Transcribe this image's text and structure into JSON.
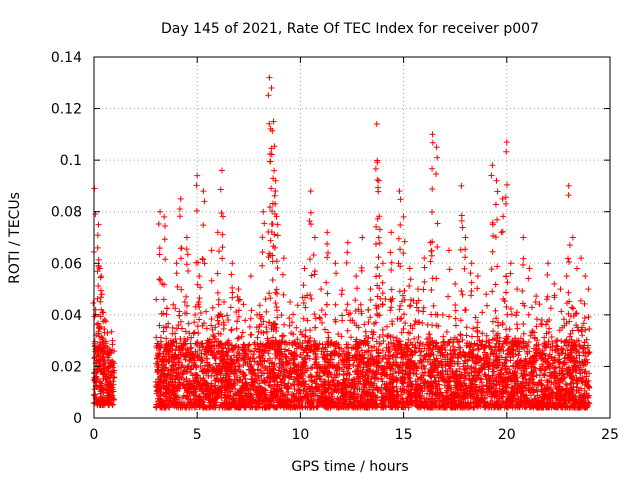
{
  "chart_data": {
    "type": "scatter",
    "title": "Day 145 of 2021, Rate Of TEC Index for receiver p007",
    "xlabel": "GPS time / hours",
    "ylabel": "ROTI / TECUs",
    "xlim": [
      0,
      25
    ],
    "ylim": [
      0,
      0.14
    ],
    "x_ticks": [
      "0",
      "5",
      "10",
      "15",
      "20",
      "25"
    ],
    "y_ticks": [
      "0",
      "0.02",
      "0.04",
      "0.06",
      "0.08",
      "0.1",
      "0.12",
      "0.14"
    ],
    "grid": true,
    "marker": "plus",
    "colors": {
      "points": "#ff0000",
      "grid": "#a0a0a0"
    },
    "series": [
      {
        "x": [
          0.02,
          0.05,
          0.08,
          0.12,
          0.15,
          0.18,
          0.22,
          0.25,
          0.28,
          0.32,
          0.35,
          0.38,
          0.42,
          0.45,
          0.48,
          0.52,
          0.55,
          0.6,
          0.65,
          0.7,
          0.75,
          0.8,
          0.85,
          0.9,
          0.95,
          3.0,
          3.1,
          3.2,
          3.3,
          3.4,
          3.5,
          3.6,
          3.7,
          3.8,
          3.9,
          4.0,
          4.2,
          4.4,
          4.5,
          4.7,
          4.9,
          5.0,
          5.1,
          5.3,
          5.5,
          5.7,
          5.9,
          6.0,
          6.2,
          6.3,
          6.5,
          6.7,
          7.0,
          7.3,
          7.6,
          7.9,
          8.2,
          8.5,
          8.6,
          8.7,
          8.8,
          8.9,
          9.2,
          9.5,
          9.8,
          10.2,
          10.5,
          10.7,
          11.0,
          11.3,
          11.7,
          12.0,
          12.3,
          12.7,
          13.0,
          13.4,
          13.7,
          13.8,
          14.0,
          14.4,
          14.8,
          15.0,
          15.3,
          15.7,
          16.0,
          16.3,
          16.4,
          16.6,
          16.9,
          17.2,
          17.5,
          17.8,
          18.0,
          18.3,
          18.6,
          19.0,
          19.3,
          19.5,
          19.8,
          20.0,
          20.2,
          20.5,
          20.8,
          21.1,
          21.4,
          21.7,
          22.0,
          22.3,
          22.6,
          22.9,
          23.0,
          23.2,
          23.4,
          23.6,
          23.8,
          23.95
        ],
        "y": [
          0.089,
          0.028,
          0.042,
          0.018,
          0.012,
          0.066,
          0.075,
          0.035,
          0.058,
          0.022,
          0.055,
          0.048,
          0.031,
          0.041,
          0.02,
          0.038,
          0.015,
          0.025,
          0.033,
          0.017,
          0.012,
          0.009,
          0.008,
          0.011,
          0.007,
          0.014,
          0.018,
          0.08,
          0.052,
          0.078,
          0.035,
          0.022,
          0.015,
          0.028,
          0.012,
          0.06,
          0.085,
          0.045,
          0.07,
          0.025,
          0.04,
          0.094,
          0.055,
          0.088,
          0.03,
          0.065,
          0.018,
          0.072,
          0.096,
          0.045,
          0.038,
          0.06,
          0.05,
          0.025,
          0.055,
          0.04,
          0.08,
          0.132,
          0.128,
          0.115,
          0.092,
          0.075,
          0.062,
          0.045,
          0.035,
          0.058,
          0.088,
          0.07,
          0.05,
          0.072,
          0.06,
          0.048,
          0.068,
          0.055,
          0.07,
          0.05,
          0.114,
          0.092,
          0.06,
          0.072,
          0.088,
          0.078,
          0.058,
          0.05,
          0.062,
          0.068,
          0.11,
          0.105,
          0.04,
          0.065,
          0.052,
          0.09,
          0.07,
          0.06,
          0.055,
          0.048,
          0.098,
          0.092,
          0.085,
          0.107,
          0.06,
          0.05,
          0.07,
          0.058,
          0.045,
          0.038,
          0.06,
          0.052,
          0.05,
          0.055,
          0.09,
          0.07,
          0.058,
          0.062,
          0.055,
          0.05
        ]
      }
    ],
    "density_bands": [
      {
        "x": [
          0.0,
          0.98
        ],
        "y": [
          0.005,
          0.03
        ]
      },
      {
        "x": [
          3.0,
          24.0
        ],
        "y": [
          0.004,
          0.03
        ]
      }
    ]
  }
}
